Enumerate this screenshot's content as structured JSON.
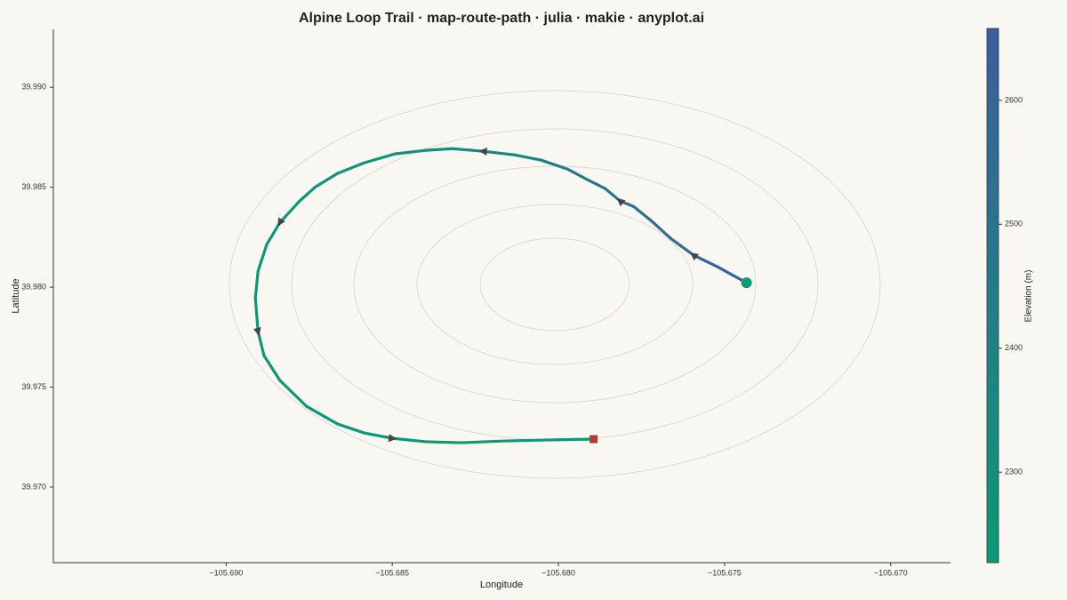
{
  "chart_data": {
    "type": "route",
    "title": "Alpine Loop Trail · map-route-path · julia · makie · anyplot.ai",
    "xlabel": "Longitude",
    "ylabel": "Latitude",
    "colorbar_label": "Elevation (m)",
    "x": [
      -105.67434,
      -105.67521,
      -105.67593,
      -105.67662,
      -105.67721,
      -105.67774,
      -105.67814,
      -105.67859,
      -105.67907,
      -105.67973,
      -105.68053,
      -105.68133,
      -105.68226,
      -105.68319,
      -105.68404,
      -105.68492,
      -105.68585,
      -105.68665,
      -105.68731,
      -105.68779,
      -105.68838,
      -105.68878,
      -105.68904,
      -105.68912,
      -105.68904,
      -105.68886,
      -105.68838,
      -105.68758,
      -105.68665,
      -105.68585,
      -105.685,
      -105.68399,
      -105.68293,
      -105.6816,
      -105.68027,
      -105.67894
    ],
    "y": [
      39.98022,
      39.98102,
      39.9816,
      39.98244,
      39.98333,
      39.98404,
      39.98431,
      39.98493,
      39.98533,
      39.98591,
      39.98636,
      39.98662,
      39.9868,
      39.98693,
      39.98684,
      39.98667,
      39.98622,
      39.98569,
      39.98502,
      39.98431,
      39.98324,
      39.98213,
      39.9808,
      39.97947,
      39.97778,
      39.97658,
      39.97533,
      39.97404,
      39.97316,
      39.97271,
      39.97244,
      39.97227,
      39.97222,
      39.97231,
      39.97236,
      39.9724
    ],
    "elevation": [
      2615,
      2600,
      2580,
      2560,
      2540,
      2520,
      2505,
      2485,
      2465,
      2440,
      2410,
      2380,
      2350,
      2325,
      2300,
      2280,
      2265,
      2255,
      2250,
      2245,
      2240,
      2240,
      2238,
      2236,
      2235,
      2235,
      2236,
      2237,
      2238,
      2238,
      2239,
      2240,
      2240,
      2240,
      2241,
      2242
    ],
    "xlim": [
      -105.6952,
      -105.6682
    ],
    "ylim": [
      39.96622,
      39.9929
    ],
    "xticks": [
      {
        "value": -105.69,
        "label": "−105.690"
      },
      {
        "value": -105.685,
        "label": "−105.685"
      },
      {
        "value": -105.68,
        "label": "−105.680"
      },
      {
        "value": -105.675,
        "label": "−105.675"
      },
      {
        "value": -105.67,
        "label": "−105.670"
      }
    ],
    "yticks": [
      {
        "value": 39.97,
        "label": "39.970"
      },
      {
        "value": 39.975,
        "label": "39.975"
      },
      {
        "value": 39.98,
        "label": "39.980"
      },
      {
        "value": 39.985,
        "label": "39.985"
      },
      {
        "value": 39.99,
        "label": "39.990"
      }
    ],
    "clim": [
      2227,
      2658
    ],
    "cticks": [
      2300,
      2400,
      2500,
      2600
    ],
    "colormap": [
      "#0a9a74",
      "#3c5e9e"
    ],
    "start_color": "#0a9a74",
    "end_color": "#b23a3a",
    "arrow_color": "#454545"
  }
}
